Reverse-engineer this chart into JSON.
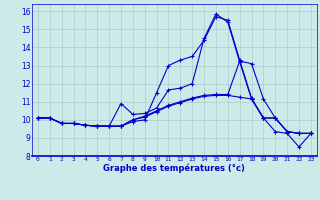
{
  "background_color": "#cceae8",
  "grid_color": "#aacccc",
  "line_color": "#0000cc",
  "xlabel": "Graphe des températures (°c)",
  "xlabel_color": "#0000cc",
  "ylabel_ticks": [
    8,
    9,
    10,
    11,
    12,
    13,
    14,
    15,
    16
  ],
  "xlim": [
    -0.5,
    23.5
  ],
  "ylim": [
    8,
    16.4
  ],
  "lines": [
    {
      "x": [
        0,
        1,
        2,
        3,
        4,
        5,
        6,
        7,
        8,
        9,
        10,
        11,
        12,
        13,
        14,
        15,
        16,
        17,
        18,
        19,
        20,
        21,
        22,
        23
      ],
      "y": [
        10.1,
        10.1,
        9.8,
        9.8,
        9.7,
        9.65,
        9.65,
        9.65,
        9.9,
        10.0,
        11.5,
        13.0,
        13.3,
        13.5,
        14.4,
        15.7,
        15.5,
        13.3,
        11.2,
        10.1,
        9.35,
        9.25,
        8.5,
        9.25
      ]
    },
    {
      "x": [
        0,
        1,
        2,
        3,
        4,
        5,
        6,
        7,
        8,
        9,
        10,
        11,
        12,
        13,
        14,
        15,
        16,
        17,
        18,
        19,
        20,
        21,
        22,
        23
      ],
      "y": [
        10.1,
        10.1,
        9.8,
        9.8,
        9.7,
        9.65,
        9.65,
        10.9,
        10.3,
        10.35,
        10.65,
        11.65,
        11.75,
        12.0,
        14.5,
        15.85,
        15.4,
        13.2,
        11.15,
        10.1,
        10.1,
        9.35,
        9.25,
        9.25
      ]
    },
    {
      "x": [
        0,
        1,
        2,
        3,
        4,
        5,
        6,
        7,
        8,
        9,
        10,
        11,
        12,
        13,
        14,
        15,
        16,
        17,
        18,
        19,
        20,
        21,
        22,
        23
      ],
      "y": [
        10.1,
        10.1,
        9.8,
        9.8,
        9.7,
        9.65,
        9.65,
        9.65,
        10.0,
        10.2,
        10.5,
        10.8,
        11.0,
        11.2,
        11.35,
        11.4,
        11.4,
        13.25,
        13.1,
        11.15,
        10.1,
        9.35,
        9.25,
        9.25
      ]
    },
    {
      "x": [
        0,
        1,
        2,
        3,
        4,
        5,
        6,
        7,
        8,
        9,
        10,
        11,
        12,
        13,
        14,
        15,
        16,
        17,
        18,
        19,
        20,
        21,
        22,
        23
      ],
      "y": [
        10.1,
        10.1,
        9.8,
        9.8,
        9.7,
        9.65,
        9.65,
        9.65,
        10.0,
        10.15,
        10.45,
        10.75,
        10.95,
        11.15,
        11.3,
        11.35,
        11.35,
        11.25,
        11.15,
        10.1,
        10.1,
        9.35,
        9.25,
        9.25
      ]
    }
  ]
}
